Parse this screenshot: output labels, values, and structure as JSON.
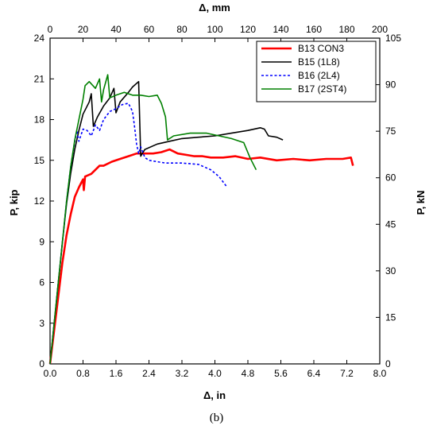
{
  "caption": "(b)",
  "chart_data": {
    "type": "line",
    "xlabel": "Δ, in",
    "ylabel": "P, kip",
    "x2label": "Δ, mm",
    "y2label": "P, kN",
    "xlim": [
      0,
      8
    ],
    "ylim": [
      0,
      24
    ],
    "x2lim": [
      0,
      200
    ],
    "y2lim": [
      0,
      105
    ],
    "xticks": [
      "0.0",
      "0.8",
      "1.6",
      "2.4",
      "3.2",
      "4.0",
      "4.8",
      "5.6",
      "6.4",
      "7.2",
      "8.0"
    ],
    "yticks": [
      "0",
      "3",
      "6",
      "9",
      "12",
      "15",
      "18",
      "21",
      "24"
    ],
    "x2ticks": [
      "0",
      "20",
      "40",
      "60",
      "80",
      "100",
      "120",
      "140",
      "160",
      "180",
      "200"
    ],
    "y2ticks": [
      "0",
      "15",
      "30",
      "45",
      "60",
      "75",
      "90",
      "105"
    ],
    "grid": false,
    "legend_position": "top-right",
    "series": [
      {
        "name": "B13 CON3",
        "color": "#ff0000",
        "style": "solid",
        "points": [
          [
            0,
            0
          ],
          [
            0.1,
            2.5
          ],
          [
            0.2,
            5
          ],
          [
            0.3,
            7.5
          ],
          [
            0.4,
            9.5
          ],
          [
            0.5,
            11
          ],
          [
            0.6,
            12.3
          ],
          [
            0.7,
            13
          ],
          [
            0.8,
            13.6
          ],
          [
            0.82,
            12.8
          ],
          [
            0.85,
            13.8
          ],
          [
            1.0,
            14
          ],
          [
            1.1,
            14.3
          ],
          [
            1.2,
            14.6
          ],
          [
            1.3,
            14.6
          ],
          [
            1.5,
            14.9
          ],
          [
            1.7,
            15.1
          ],
          [
            1.9,
            15.3
          ],
          [
            2.1,
            15.5
          ],
          [
            2.3,
            15.5
          ],
          [
            2.5,
            15.5
          ],
          [
            2.7,
            15.6
          ],
          [
            2.9,
            15.8
          ],
          [
            3.1,
            15.5
          ],
          [
            3.3,
            15.4
          ],
          [
            3.5,
            15.3
          ],
          [
            3.7,
            15.3
          ],
          [
            3.9,
            15.2
          ],
          [
            4.2,
            15.2
          ],
          [
            4.5,
            15.3
          ],
          [
            4.8,
            15.1
          ],
          [
            5.1,
            15.2
          ],
          [
            5.5,
            15.0
          ],
          [
            5.9,
            15.1
          ],
          [
            6.3,
            15.0
          ],
          [
            6.7,
            15.1
          ],
          [
            7.1,
            15.1
          ],
          [
            7.3,
            15.2
          ],
          [
            7.35,
            14.6
          ]
        ]
      },
      {
        "name": "B15 (1L8)",
        "color": "#000000",
        "style": "solid",
        "points": [
          [
            0,
            0
          ],
          [
            0.1,
            3
          ],
          [
            0.2,
            6
          ],
          [
            0.3,
            9
          ],
          [
            0.4,
            11.8
          ],
          [
            0.5,
            14
          ],
          [
            0.6,
            15.8
          ],
          [
            0.7,
            17.2
          ],
          [
            0.8,
            18.4
          ],
          [
            0.95,
            19.3
          ],
          [
            1.0,
            19.9
          ],
          [
            1.05,
            17.5
          ],
          [
            1.15,
            18.2
          ],
          [
            1.3,
            19
          ],
          [
            1.45,
            19.6
          ],
          [
            1.55,
            20.3
          ],
          [
            1.6,
            18.5
          ],
          [
            1.7,
            19.3
          ],
          [
            1.9,
            20
          ],
          [
            2.0,
            20.4
          ],
          [
            2.15,
            20.8
          ],
          [
            2.2,
            15.3
          ],
          [
            2.3,
            15.8
          ],
          [
            2.6,
            16.2
          ],
          [
            2.9,
            16.4
          ],
          [
            3.2,
            16.6
          ],
          [
            3.6,
            16.7
          ],
          [
            4.0,
            16.8
          ],
          [
            4.4,
            17
          ],
          [
            4.8,
            17.2
          ],
          [
            5.1,
            17.4
          ],
          [
            5.2,
            17.3
          ],
          [
            5.3,
            16.8
          ],
          [
            5.5,
            16.7
          ],
          [
            5.65,
            16.5
          ]
        ]
      },
      {
        "name": "B16 (2L4)",
        "color": "#0000ff",
        "style": "dashed",
        "points": [
          [
            0,
            0
          ],
          [
            0.1,
            3
          ],
          [
            0.2,
            6
          ],
          [
            0.3,
            9
          ],
          [
            0.4,
            12
          ],
          [
            0.5,
            14.5
          ],
          [
            0.6,
            16.4
          ],
          [
            0.65,
            17.2
          ],
          [
            0.7,
            16.4
          ],
          [
            0.8,
            17.3
          ],
          [
            0.9,
            17.2
          ],
          [
            1.0,
            16.8
          ],
          [
            1.1,
            17.6
          ],
          [
            1.2,
            17.2
          ],
          [
            1.3,
            18
          ],
          [
            1.45,
            18.6
          ],
          [
            1.6,
            18.8
          ],
          [
            1.75,
            19.1
          ],
          [
            1.9,
            19.2
          ],
          [
            2.0,
            18.6
          ],
          [
            2.05,
            17.5
          ],
          [
            2.1,
            16.2
          ],
          [
            2.15,
            15.5
          ],
          [
            2.2,
            16
          ],
          [
            2.3,
            15.2
          ],
          [
            2.4,
            15
          ],
          [
            2.8,
            14.8
          ],
          [
            3.2,
            14.8
          ],
          [
            3.6,
            14.7
          ],
          [
            3.9,
            14.3
          ],
          [
            4.1,
            13.8
          ],
          [
            4.3,
            13
          ]
        ]
      },
      {
        "name": "B17 (2ST4)",
        "color": "#008000",
        "style": "solid",
        "points": [
          [
            0,
            0
          ],
          [
            0.1,
            3
          ],
          [
            0.2,
            6
          ],
          [
            0.3,
            9
          ],
          [
            0.4,
            12
          ],
          [
            0.5,
            14.5
          ],
          [
            0.6,
            16.5
          ],
          [
            0.7,
            18
          ],
          [
            0.8,
            19.5
          ],
          [
            0.85,
            20.5
          ],
          [
            0.95,
            20.8
          ],
          [
            1.1,
            20.3
          ],
          [
            1.2,
            21
          ],
          [
            1.25,
            19.3
          ],
          [
            1.3,
            20.2
          ],
          [
            1.4,
            21.3
          ],
          [
            1.45,
            19.6
          ],
          [
            1.6,
            19.8
          ],
          [
            1.8,
            20
          ],
          [
            2.0,
            19.8
          ],
          [
            2.2,
            19.8
          ],
          [
            2.4,
            19.7
          ],
          [
            2.6,
            19.8
          ],
          [
            2.7,
            19.2
          ],
          [
            2.8,
            18.2
          ],
          [
            2.85,
            16.5
          ],
          [
            3.0,
            16.8
          ],
          [
            3.4,
            17
          ],
          [
            3.8,
            17
          ],
          [
            4.1,
            16.8
          ],
          [
            4.4,
            16.6
          ],
          [
            4.7,
            16.3
          ],
          [
            4.85,
            15.2
          ],
          [
            5.0,
            14.3
          ]
        ]
      }
    ]
  }
}
